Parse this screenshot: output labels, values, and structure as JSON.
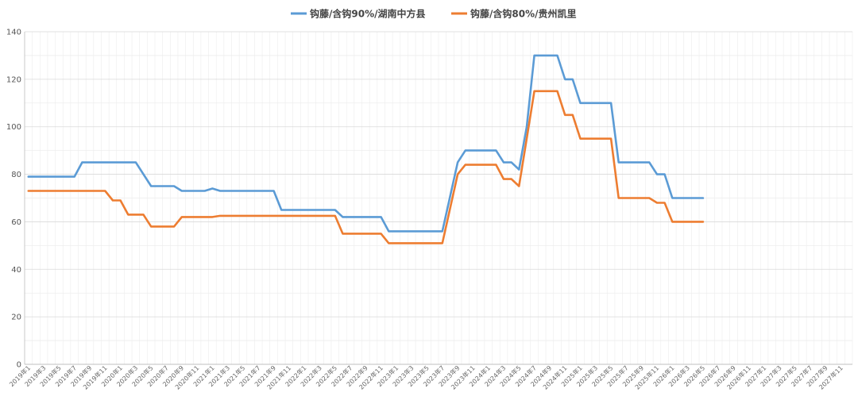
{
  "chart_data": {
    "type": "line",
    "title": "",
    "xlabel": "",
    "ylabel": "",
    "ylim": [
      0,
      140
    ],
    "yticks": [
      0,
      20,
      40,
      60,
      80,
      100,
      120,
      140
    ],
    "grid": true,
    "legend_position": "top-center",
    "x_tick_labels": [
      "2019年1",
      "2019年3",
      "2019年5",
      "2019年7",
      "2019年9",
      "2019年11",
      "2020年1",
      "2020年3",
      "2020年5",
      "2020年7",
      "2020年9",
      "2020年11",
      "2021年1",
      "2021年3",
      "2021年5",
      "2021年7",
      "2021年9",
      "2021年11",
      "2022年1",
      "2022年3",
      "2022年5",
      "2022年7",
      "2022年9",
      "2022年11",
      "2023年1",
      "2023年3",
      "2023年5",
      "2023年7",
      "2023年9",
      "2023年11",
      "2024年1",
      "2024年3",
      "2024年5",
      "2024年7",
      "2024年9",
      "2024年11",
      "2025年1",
      "2025年3",
      "2025年5",
      "2025年7",
      "2025年9",
      "2025年11",
      "2026年1",
      "2026年3",
      "2026年5",
      "2026年7",
      "2026年9",
      "2026年11",
      "2027年1",
      "2027年3",
      "2027年5",
      "2027年7",
      "2027年9",
      "2027年11"
    ],
    "series": [
      {
        "name": "钩藤/含钩90%/湖南中方县",
        "color": "#5B9BD5",
        "points": [
          [
            "2019-01",
            79
          ],
          [
            "2019-07",
            79
          ],
          [
            "2019-08",
            85
          ],
          [
            "2019-10",
            85
          ],
          [
            "2020-01",
            85
          ],
          [
            "2020-03",
            85
          ],
          [
            "2020-05",
            75
          ],
          [
            "2020-08",
            75
          ],
          [
            "2020-09",
            73
          ],
          [
            "2020-12",
            73
          ],
          [
            "2021-01",
            74
          ],
          [
            "2021-02",
            73
          ],
          [
            "2021-09",
            73
          ],
          [
            "2021-10",
            65
          ],
          [
            "2022-05",
            65
          ],
          [
            "2022-06",
            62
          ],
          [
            "2022-11",
            62
          ],
          [
            "2022-12",
            56
          ],
          [
            "2023-07",
            56
          ],
          [
            "2023-09",
            85
          ],
          [
            "2023-10",
            90
          ],
          [
            "2024-02",
            90
          ],
          [
            "2024-03",
            85
          ],
          [
            "2024-04",
            85
          ],
          [
            "2024-05",
            82
          ],
          [
            "2024-06",
            100
          ],
          [
            "2024-07",
            130
          ],
          [
            "2024-10",
            130
          ],
          [
            "2024-11",
            120
          ],
          [
            "2024-12",
            120
          ],
          [
            "2025-01",
            110
          ],
          [
            "2025-05",
            110
          ],
          [
            "2025-06",
            85
          ],
          [
            "2025-10",
            85
          ],
          [
            "2025-11",
            80
          ],
          [
            "2025-12",
            80
          ],
          [
            "2026-01",
            70
          ],
          [
            "2026-05",
            70
          ]
        ]
      },
      {
        "name": "钩藤/含钩80%/贵州凯里",
        "color": "#ED7D31",
        "points": [
          [
            "2019-01",
            73
          ],
          [
            "2019-11",
            73
          ],
          [
            "2019-12",
            69
          ],
          [
            "2020-01",
            69
          ],
          [
            "2020-02",
            63
          ],
          [
            "2020-04",
            63
          ],
          [
            "2020-05",
            58
          ],
          [
            "2020-08",
            58
          ],
          [
            "2020-09",
            62
          ],
          [
            "2021-01",
            62
          ],
          [
            "2021-02",
            62.5
          ],
          [
            "2022-05",
            62.5
          ],
          [
            "2022-06",
            55
          ],
          [
            "2022-11",
            55
          ],
          [
            "2022-12",
            51
          ],
          [
            "2023-07",
            51
          ],
          [
            "2023-09",
            80
          ],
          [
            "2023-10",
            84
          ],
          [
            "2024-02",
            84
          ],
          [
            "2024-03",
            78
          ],
          [
            "2024-04",
            78
          ],
          [
            "2024-05",
            75
          ],
          [
            "2024-06",
            95
          ],
          [
            "2024-07",
            115
          ],
          [
            "2024-10",
            115
          ],
          [
            "2024-11",
            105
          ],
          [
            "2024-12",
            105
          ],
          [
            "2025-01",
            95
          ],
          [
            "2025-05",
            95
          ],
          [
            "2025-06",
            70
          ],
          [
            "2025-10",
            70
          ],
          [
            "2025-11",
            68
          ],
          [
            "2025-12",
            68
          ],
          [
            "2026-01",
            60
          ],
          [
            "2026-05",
            60
          ]
        ]
      }
    ]
  }
}
